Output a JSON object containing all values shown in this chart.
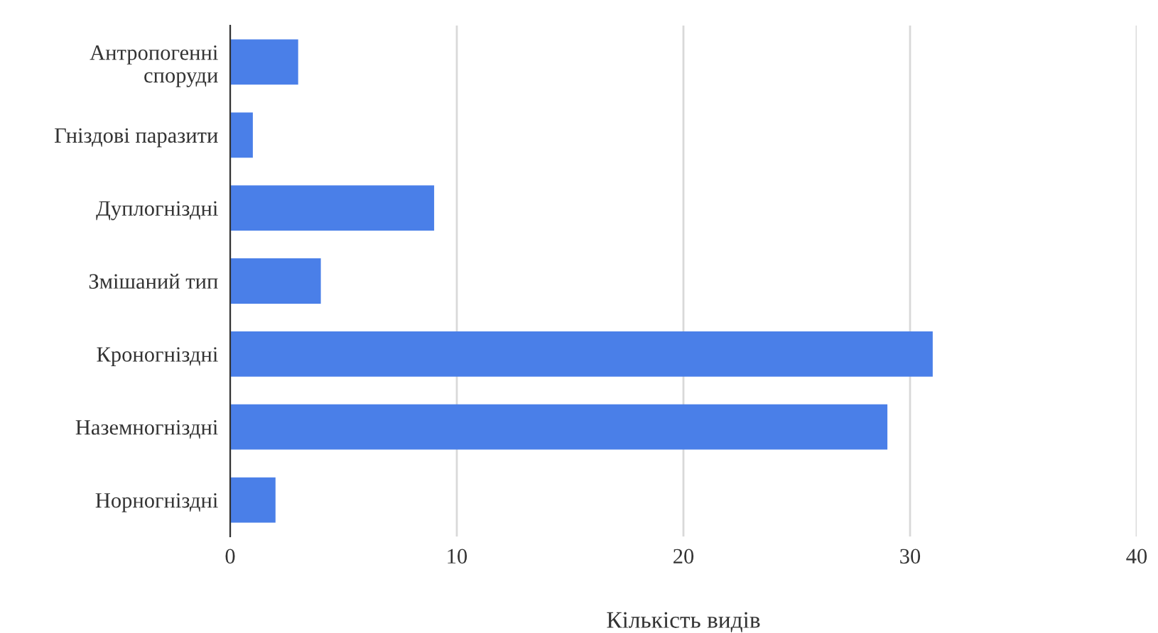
{
  "chart_data": {
    "type": "bar",
    "orientation": "horizontal",
    "categories": [
      "Антропогенні\nспоруди",
      "Гніздові паразити",
      "Дуплогніздні",
      "Змішаний тип",
      "Кроногніздні",
      "Наземногніздні",
      "Норногніздні"
    ],
    "values": [
      3,
      1,
      9,
      4,
      31,
      29,
      2
    ],
    "color": "#4a7fe8",
    "xlabel": "Кількість видів",
    "xlim": [
      0,
      40
    ],
    "xticks": [
      0,
      10,
      20,
      30,
      40
    ],
    "grid": "x"
  }
}
